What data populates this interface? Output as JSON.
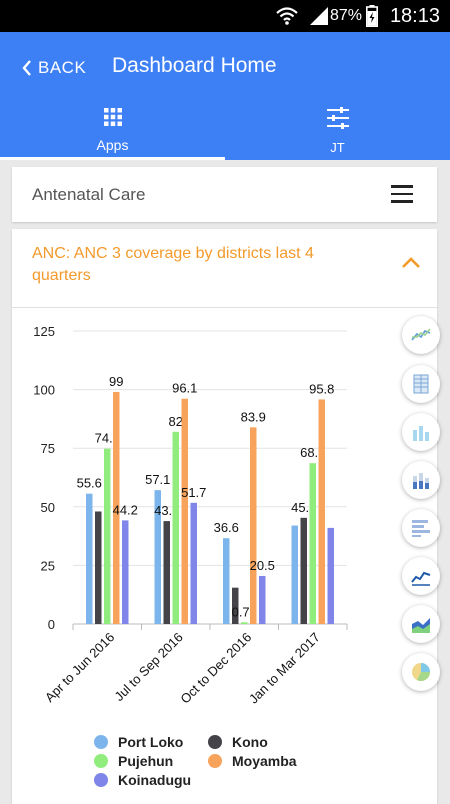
{
  "status_bar": {
    "battery": "87%",
    "time": "18:13"
  },
  "header": {
    "back_label": "BACK",
    "title": "Dashboard Home"
  },
  "tabs": [
    {
      "label": "Apps"
    },
    {
      "label": "JT"
    }
  ],
  "menu_card": {
    "title": "Antenatal Care"
  },
  "chart_card": {
    "title": "ANC: ANC 3 coverage by districts last 4 quarters"
  },
  "chart_data": {
    "type": "bar",
    "title": "ANC: ANC 3 coverage by districts last 4 quarters",
    "categories": [
      "Apr to Jun 2016",
      "Jul to Sep 2016",
      "Oct to Dec 2016",
      "Jan to Mar 2017"
    ],
    "ylim": [
      0,
      125
    ],
    "yticks": [
      0,
      25,
      50,
      75,
      100,
      125
    ],
    "grid": true,
    "legend_position": "bottom",
    "series": [
      {
        "name": "Port Loko",
        "color": "#7cb5ec",
        "values": [
          55.6,
          57.1,
          36.6,
          42
        ],
        "labels": [
          "55.6",
          "57.1",
          "36.6",
          ""
        ]
      },
      {
        "name": "Kono",
        "color": "#434348",
        "values": [
          48,
          43.9,
          15.5,
          45.3
        ],
        "labels": [
          "",
          "43.9",
          "",
          "45.3"
        ]
      },
      {
        "name": "Pujehun",
        "color": "#90ed7d",
        "values": [
          74.8,
          82,
          0.74,
          68.6
        ],
        "labels": [
          "74.8",
          "82",
          "0.74",
          "68.6"
        ]
      },
      {
        "name": "Moyamba",
        "color": "#f7a35c",
        "values": [
          99,
          96.1,
          83.9,
          95.8
        ],
        "labels": [
          "99",
          "96.1",
          "83.9",
          "95.8"
        ]
      },
      {
        "name": "Koinadugu",
        "color": "#8085e9",
        "values": [
          44.2,
          51.7,
          20.5,
          41
        ],
        "labels": [
          "44.2",
          "51.7",
          "20.5",
          ""
        ]
      }
    ]
  },
  "chart_type_buttons": [
    {
      "icon": "line-chart-icon"
    },
    {
      "icon": "table-icon"
    },
    {
      "icon": "column-chart-icon"
    },
    {
      "icon": "stacked-column-icon"
    },
    {
      "icon": "bar-chart-icon"
    },
    {
      "icon": "multi-line-chart-icon"
    },
    {
      "icon": "area-chart-icon"
    },
    {
      "icon": "pie-chart-icon"
    }
  ]
}
